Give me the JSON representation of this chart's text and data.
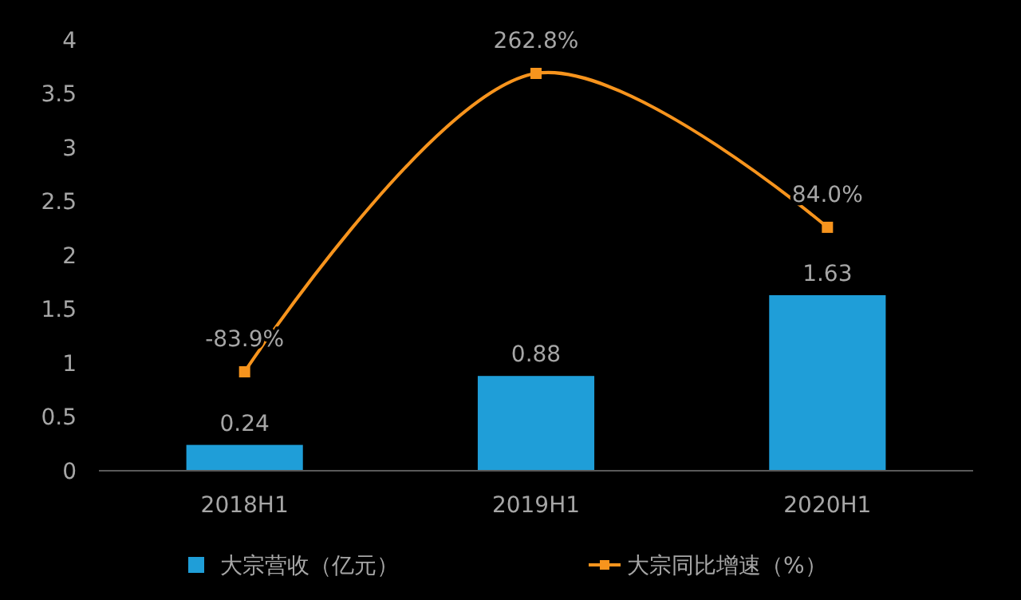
{
  "chart_data": {
    "type": "bar",
    "categories": [
      "2018H1",
      "2019H1",
      "2020H1"
    ],
    "series": [
      {
        "name": "大宗营收（亿元）",
        "color": "#1f9ed8",
        "values": [
          0.24,
          0.88,
          1.63
        ],
        "value_labels": [
          "0.24",
          "0.88",
          "1.63"
        ]
      },
      {
        "name": "大宗同比增速（%）",
        "type": "line",
        "axis": "y2",
        "color": "#f7941d",
        "values": [
          -83.9,
          262.8,
          84.0
        ],
        "value_labels": [
          "-83.9%",
          "262.8%",
          "84.0%"
        ],
        "marker": "square"
      }
    ],
    "ylim": [
      0,
      4
    ],
    "yticks": [
      0,
      {
        "value": 0.5,
        "label": "0.5"
      },
      1,
      {
        "value": 1.5,
        "label": "1.5"
      },
      2,
      {
        "value": 2.5,
        "label": "2.5"
      },
      3,
      {
        "value": 3.5,
        "label": "3.5"
      },
      4
    ],
    "grid": false,
    "legend": "bottom"
  }
}
